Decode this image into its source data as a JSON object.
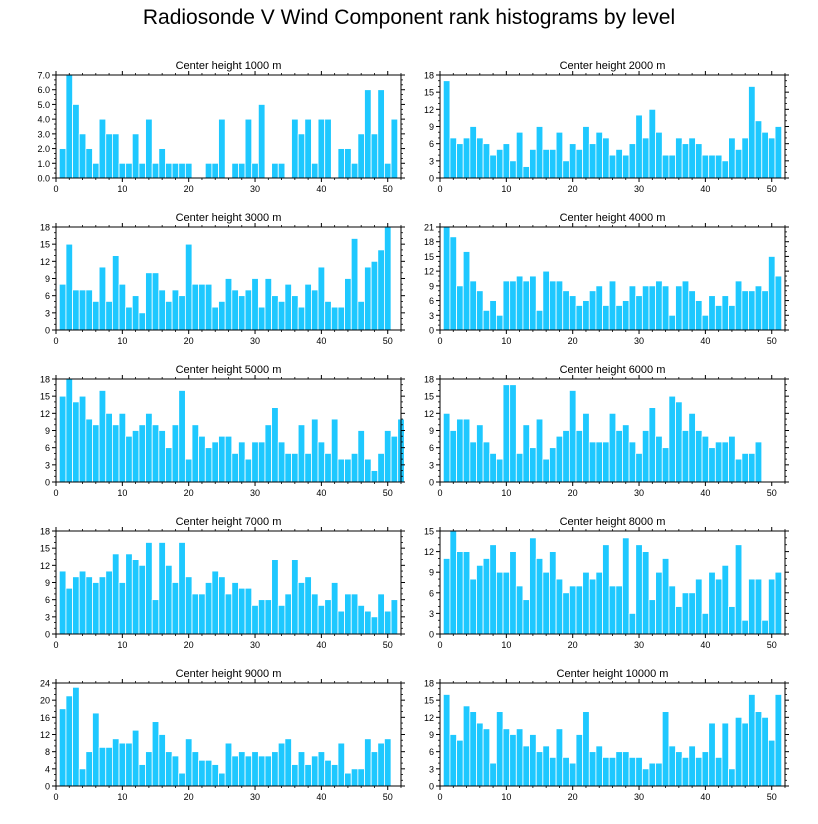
{
  "figure_title": "Radiosonde V Wind Component rank histograms by level",
  "colors": {
    "bar_fill": "#1ec8ff",
    "bar_stroke": "#ffffff",
    "axis": "#000000"
  },
  "chart_data": [
    {
      "type": "bar",
      "title": "Center height 1000 m",
      "ylim": [
        0,
        7
      ],
      "yticks": [
        "0.0",
        "1.0",
        "2.0",
        "3.0",
        "4.0",
        "5.0",
        "6.0",
        "7.0"
      ],
      "xticks": [
        "0",
        "10",
        "20",
        "30",
        "40",
        "50"
      ],
      "xlim": [
        0,
        52
      ],
      "values": [
        2,
        7,
        5,
        3,
        2,
        1,
        4,
        3,
        3,
        1,
        1,
        3,
        1,
        4,
        1,
        2,
        1,
        1,
        1,
        1,
        0,
        0,
        1,
        1,
        4,
        0,
        1,
        1,
        4,
        1,
        5,
        0,
        1,
        1,
        0,
        4,
        3,
        4,
        1,
        4,
        4,
        0,
        2,
        2,
        1,
        3,
        6,
        3,
        6,
        1,
        4
      ]
    },
    {
      "type": "bar",
      "title": "Center height 2000 m",
      "ylim": [
        0,
        18
      ],
      "yticks": [
        "0",
        "3",
        "6",
        "9",
        "12",
        "15",
        "18"
      ],
      "xticks": [
        "0",
        "10",
        "20",
        "30",
        "40",
        "50"
      ],
      "xlim": [
        0,
        52
      ],
      "values": [
        17,
        7,
        6,
        7,
        9,
        7,
        6,
        4,
        5,
        6,
        3,
        8,
        2,
        5,
        9,
        5,
        5,
        8,
        3,
        6,
        5,
        9,
        6,
        8,
        7,
        4,
        5,
        4,
        6,
        11,
        7,
        12,
        8,
        4,
        4,
        7,
        6,
        7,
        6,
        4,
        4,
        4,
        3,
        7,
        5,
        7,
        16,
        10,
        8,
        7,
        9
      ]
    },
    {
      "type": "bar",
      "title": "Center height 3000 m",
      "ylim": [
        0,
        18
      ],
      "yticks": [
        "0",
        "3",
        "6",
        "9",
        "12",
        "15",
        "18"
      ],
      "xticks": [
        "0",
        "10",
        "20",
        "30",
        "40",
        "50"
      ],
      "xlim": [
        0,
        52
      ],
      "values": [
        8,
        15,
        7,
        7,
        7,
        5,
        11,
        5,
        13,
        8,
        4,
        6,
        3,
        10,
        10,
        7,
        5,
        7,
        6,
        15,
        8,
        8,
        8,
        4,
        5,
        9,
        7,
        6,
        7,
        9,
        4,
        9,
        6,
        5,
        8,
        6,
        4,
        8,
        7,
        11,
        5,
        4,
        4,
        9,
        16,
        5,
        11,
        12,
        14,
        18
      ]
    },
    {
      "type": "bar",
      "title": "Center height 4000 m",
      "ylim": [
        0,
        21
      ],
      "yticks": [
        "0",
        "3",
        "6",
        "9",
        "12",
        "15",
        "18",
        "21"
      ],
      "xticks": [
        "0",
        "10",
        "20",
        "30",
        "40",
        "50"
      ],
      "xlim": [
        0,
        52
      ],
      "values": [
        21,
        19,
        9,
        16,
        10,
        8,
        4,
        6,
        3,
        10,
        10,
        11,
        10,
        11,
        4,
        12,
        10,
        10,
        8,
        7,
        5,
        6,
        8,
        9,
        5,
        10,
        5,
        6,
        9,
        7,
        9,
        9,
        10,
        9,
        3,
        9,
        10,
        8,
        6,
        3,
        7,
        5,
        7,
        5,
        10,
        8,
        8,
        9,
        8,
        15,
        11
      ]
    },
    {
      "type": "bar",
      "title": "Center height 5000 m",
      "ylim": [
        0,
        18
      ],
      "yticks": [
        "0",
        "3",
        "6",
        "9",
        "12",
        "15",
        "18"
      ],
      "xticks": [
        "0",
        "10",
        "20",
        "30",
        "40",
        "50"
      ],
      "xlim": [
        0,
        52
      ],
      "values": [
        15,
        18,
        14,
        15,
        11,
        10,
        16,
        12,
        10,
        12,
        8,
        9,
        10,
        12,
        10,
        9,
        6,
        10,
        16,
        4,
        10,
        8,
        6,
        7,
        8,
        8,
        5,
        7,
        4,
        7,
        7,
        10,
        13,
        7,
        5,
        5,
        10,
        5,
        11,
        7,
        5,
        11,
        4,
        4,
        5,
        9,
        4,
        2,
        5,
        9,
        8,
        11
      ]
    },
    {
      "type": "bar",
      "title": "Center height 6000 m",
      "ylim": [
        0,
        18
      ],
      "yticks": [
        "0",
        "3",
        "6",
        "9",
        "12",
        "15",
        "18"
      ],
      "xticks": [
        "0",
        "10",
        "20",
        "30",
        "40",
        "50"
      ],
      "xlim": [
        0,
        52
      ],
      "values": [
        12,
        9,
        11,
        11,
        7,
        10,
        7,
        5,
        4,
        17,
        17,
        5,
        10,
        6,
        11,
        4,
        6,
        8,
        9,
        16,
        9,
        12,
        7,
        7,
        7,
        12,
        9,
        10,
        7,
        5,
        9,
        13,
        8,
        6,
        15,
        14,
        9,
        12,
        9,
        8,
        6,
        7,
        7,
        8,
        4,
        5,
        5,
        7
      ]
    },
    {
      "type": "bar",
      "title": "Center height 7000 m",
      "ylim": [
        0,
        18
      ],
      "yticks": [
        "0",
        "3",
        "6",
        "9",
        "12",
        "15",
        "18"
      ],
      "xticks": [
        "0",
        "10",
        "20",
        "30",
        "40",
        "50"
      ],
      "xlim": [
        0,
        52
      ],
      "values": [
        11,
        8,
        10,
        11,
        10,
        9,
        10,
        11,
        14,
        9,
        14,
        13,
        12,
        16,
        6,
        16,
        12,
        9,
        16,
        10,
        7,
        7,
        9,
        11,
        10,
        7,
        9,
        8,
        8,
        5,
        6,
        6,
        13,
        5,
        7,
        13,
        9,
        10,
        7,
        5,
        6,
        9,
        4,
        7,
        7,
        5,
        4,
        3,
        7,
        4,
        6
      ]
    },
    {
      "type": "bar",
      "title": "Center height 8000 m",
      "ylim": [
        0,
        15
      ],
      "yticks": [
        "0",
        "3",
        "6",
        "9",
        "12",
        "15"
      ],
      "xticks": [
        "0",
        "10",
        "20",
        "30",
        "40",
        "50"
      ],
      "xlim": [
        0,
        52
      ],
      "values": [
        11,
        15,
        12,
        12,
        8,
        10,
        11,
        13,
        9,
        9,
        12,
        7,
        5,
        14,
        11,
        9,
        12,
        8,
        6,
        7,
        7,
        9,
        8,
        9,
        13,
        7,
        7,
        14,
        3,
        13,
        12,
        5,
        9,
        11,
        7,
        4,
        6,
        6,
        8,
        3,
        9,
        8,
        10,
        4,
        13,
        2,
        8,
        8,
        2,
        8,
        9
      ]
    },
    {
      "type": "bar",
      "title": "Center height 9000 m",
      "ylim": [
        0,
        24
      ],
      "yticks": [
        "0",
        "4",
        "8",
        "12",
        "16",
        "20",
        "24"
      ],
      "xticks": [
        "0",
        "10",
        "20",
        "30",
        "40",
        "50"
      ],
      "xlim": [
        0,
        52
      ],
      "values": [
        18,
        21,
        23,
        4,
        8,
        17,
        9,
        9,
        11,
        10,
        10,
        13,
        5,
        8,
        15,
        12,
        8,
        7,
        3,
        11,
        8,
        6,
        6,
        5,
        3,
        10,
        7,
        8,
        7,
        8,
        7,
        7,
        8,
        10,
        11,
        5,
        8,
        5,
        7,
        8,
        6,
        5,
        10,
        3,
        4,
        4,
        11,
        8,
        10,
        11
      ]
    },
    {
      "type": "bar",
      "title": "Center height 10000 m",
      "ylim": [
        0,
        18
      ],
      "yticks": [
        "0",
        "3",
        "6",
        "9",
        "12",
        "15",
        "18"
      ],
      "xticks": [
        "0",
        "10",
        "20",
        "30",
        "40",
        "50"
      ],
      "xlim": [
        0,
        52
      ],
      "values": [
        16,
        9,
        8,
        14,
        13,
        11,
        10,
        4,
        13,
        10,
        9,
        10,
        7,
        9,
        6,
        7,
        5,
        10,
        5,
        4,
        9,
        13,
        6,
        7,
        5,
        5,
        6,
        6,
        5,
        5,
        3,
        4,
        4,
        13,
        7,
        6,
        5,
        7,
        5,
        6,
        11,
        5,
        11,
        3,
        12,
        11,
        16,
        13,
        12,
        8,
        16
      ]
    }
  ]
}
